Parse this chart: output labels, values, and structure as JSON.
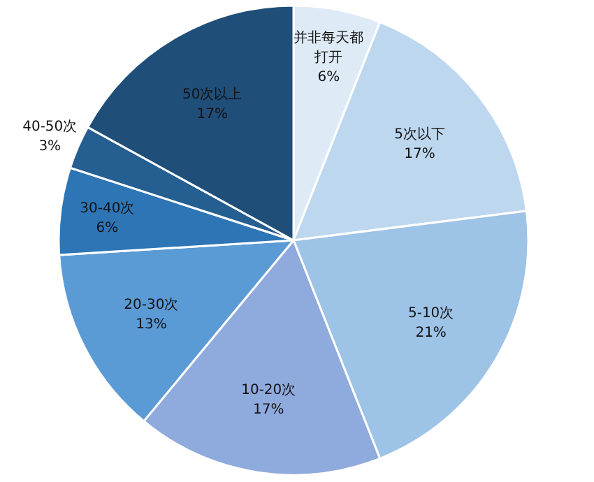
{
  "chart_data": {
    "type": "pie",
    "categories": [
      "并非每天都打开",
      "5次以下",
      "5-10次",
      "10-20次",
      "20-30次",
      "30-40次",
      "40-50次",
      "50次以上"
    ],
    "values": [
      6,
      17,
      21,
      17,
      13,
      6,
      3,
      17
    ],
    "value_labels": [
      "6%",
      "17%",
      "21%",
      "17%",
      "13%",
      "6%",
      "3%",
      "17%"
    ],
    "colors": [
      "#deebf7",
      "#bdd7ee",
      "#9dc3e6",
      "#8faadc",
      "#5b9bd5",
      "#2e75b6",
      "#255e91",
      "#1f4e79"
    ]
  }
}
